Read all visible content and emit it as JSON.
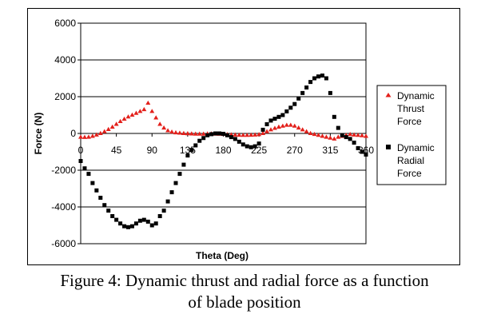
{
  "chart_data": {
    "type": "scatter",
    "xlabel": "Theta (Deg)",
    "ylabel": "Force (N)",
    "xlim": [
      0,
      360
    ],
    "ylim": [
      -6000,
      6000
    ],
    "xticks": [
      0,
      45,
      90,
      135,
      180,
      225,
      270,
      315,
      360
    ],
    "yticks": [
      6000,
      4000,
      2000,
      0,
      -2000,
      -4000,
      -6000
    ],
    "grid": "horizontal",
    "legend_position": "right",
    "series": [
      {
        "name": "Dynamic Thrust Force",
        "legend_lines": [
          "Dynamic",
          "Thrust",
          "Force"
        ],
        "marker": "triangle",
        "color": "#e3201b",
        "x": [
          0,
          5,
          10,
          15,
          20,
          25,
          30,
          35,
          40,
          45,
          50,
          55,
          60,
          65,
          70,
          75,
          80,
          85,
          90,
          95,
          100,
          105,
          110,
          115,
          120,
          125,
          130,
          135,
          140,
          145,
          150,
          155,
          160,
          165,
          170,
          175,
          180,
          185,
          190,
          195,
          200,
          205,
          210,
          215,
          220,
          225,
          230,
          235,
          240,
          245,
          250,
          255,
          260,
          265,
          270,
          275,
          280,
          285,
          290,
          295,
          300,
          305,
          310,
          315,
          320,
          325,
          330,
          335,
          340,
          345,
          350,
          355,
          360
        ],
        "y": [
          -200,
          -210,
          -200,
          -150,
          -80,
          0,
          100,
          220,
          350,
          500,
          650,
          780,
          900,
          1000,
          1100,
          1200,
          1300,
          1650,
          1200,
          850,
          500,
          300,
          150,
          80,
          40,
          20,
          0,
          -10,
          -20,
          -30,
          -30,
          -30,
          -20,
          -20,
          -30,
          -40,
          -50,
          -60,
          -70,
          -80,
          -90,
          -100,
          -100,
          -90,
          -80,
          -60,
          0,
          100,
          200,
          280,
          350,
          400,
          450,
          450,
          400,
          300,
          200,
          100,
          0,
          -50,
          -100,
          -150,
          -200,
          -250,
          -300,
          -200,
          -150,
          -100,
          -50,
          -80,
          -100,
          -120,
          -150
        ]
      },
      {
        "name": "Dynamic Radial Force",
        "legend_lines": [
          "Dynamic",
          "Radial",
          "Force"
        ],
        "marker": "square",
        "color": "#000000",
        "x": [
          0,
          5,
          10,
          15,
          20,
          25,
          30,
          35,
          40,
          45,
          50,
          55,
          60,
          65,
          70,
          75,
          80,
          85,
          90,
          95,
          100,
          105,
          110,
          115,
          120,
          125,
          130,
          135,
          140,
          145,
          150,
          155,
          160,
          165,
          170,
          175,
          180,
          185,
          190,
          195,
          200,
          205,
          210,
          215,
          220,
          225,
          230,
          235,
          240,
          245,
          250,
          255,
          260,
          265,
          270,
          275,
          280,
          285,
          290,
          295,
          300,
          305,
          310,
          315,
          320,
          325,
          330,
          335,
          340,
          345,
          350,
          355,
          360
        ],
        "y": [
          -1500,
          -1900,
          -2200,
          -2700,
          -3100,
          -3500,
          -3900,
          -4200,
          -4500,
          -4700,
          -4900,
          -5050,
          -5100,
          -5050,
          -4900,
          -4750,
          -4700,
          -4800,
          -5000,
          -4900,
          -4500,
          -4200,
          -3700,
          -3200,
          -2700,
          -2200,
          -1700,
          -1200,
          -900,
          -650,
          -400,
          -250,
          -100,
          -40,
          0,
          0,
          -20,
          -100,
          -200,
          -300,
          -450,
          -600,
          -700,
          -750,
          -700,
          -550,
          200,
          500,
          700,
          800,
          900,
          1000,
          1200,
          1400,
          1600,
          1900,
          2200,
          2500,
          2800,
          3000,
          3100,
          3150,
          3000,
          2200,
          900,
          300,
          -100,
          -200,
          -300,
          -500,
          -800,
          -1000,
          -1150
        ]
      }
    ]
  },
  "caption": {
    "line1": "Figure 4: Dynamic thrust and radial force as a function",
    "line2": "of blade position"
  }
}
